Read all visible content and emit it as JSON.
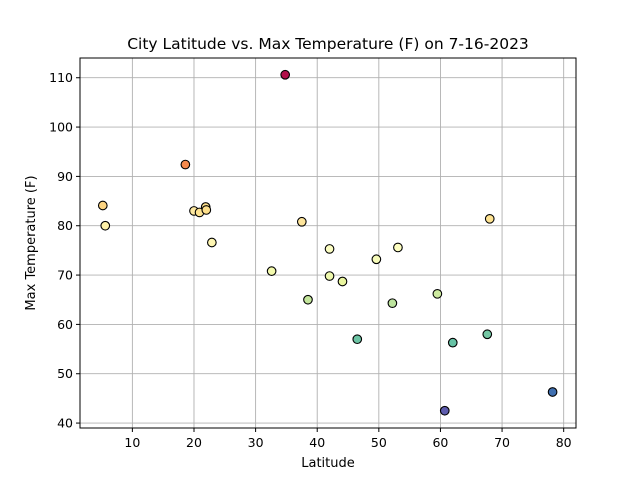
{
  "chart_data": {
    "type": "scatter",
    "title": "City Latitude vs. Max Temperature (F) on 7-16-2023",
    "xlabel": "Latitude",
    "ylabel": "Max Temperature (F)",
    "xlim": [
      1.5,
      82
    ],
    "ylim": [
      39,
      114
    ],
    "xticks": [
      10,
      20,
      30,
      40,
      50,
      60,
      70,
      80
    ],
    "yticks": [
      40,
      50,
      60,
      70,
      80,
      90,
      100,
      110
    ],
    "grid": true,
    "legend": "none",
    "colormap": "Spectral_r",
    "points": [
      {
        "x": 5.2,
        "y": 84.1,
        "color": "#fdd582"
      },
      {
        "x": 5.6,
        "y": 80.0,
        "color": "#fef1a8"
      },
      {
        "x": 18.6,
        "y": 92.4,
        "color": "#f68a4d"
      },
      {
        "x": 20.0,
        "y": 83.0,
        "color": "#fee9a0"
      },
      {
        "x": 20.9,
        "y": 82.7,
        "color": "#fee391"
      },
      {
        "x": 21.9,
        "y": 83.8,
        "color": "#fee08b"
      },
      {
        "x": 22.0,
        "y": 83.2,
        "color": "#fee08b"
      },
      {
        "x": 22.9,
        "y": 76.6,
        "color": "#fef6b2"
      },
      {
        "x": 32.6,
        "y": 70.8,
        "color": "#f3faad"
      },
      {
        "x": 34.8,
        "y": 110.6,
        "color": "#b2104a"
      },
      {
        "x": 37.5,
        "y": 80.8,
        "color": "#fee59b"
      },
      {
        "x": 38.5,
        "y": 65.0,
        "color": "#c4e69c"
      },
      {
        "x": 42.0,
        "y": 75.3,
        "color": "#fbfdc2"
      },
      {
        "x": 42.0,
        "y": 69.8,
        "color": "#eef8ad"
      },
      {
        "x": 44.1,
        "y": 68.7,
        "color": "#e9f59e"
      },
      {
        "x": 46.5,
        "y": 57.0,
        "color": "#6cc4a4"
      },
      {
        "x": 49.6,
        "y": 73.2,
        "color": "#f6fbb9"
      },
      {
        "x": 52.2,
        "y": 64.3,
        "color": "#bde49e"
      },
      {
        "x": 53.1,
        "y": 75.6,
        "color": "#fdfec1"
      },
      {
        "x": 59.5,
        "y": 66.2,
        "color": "#cdea9f"
      },
      {
        "x": 60.7,
        "y": 42.5,
        "color": "#5d5bad"
      },
      {
        "x": 62.0,
        "y": 56.3,
        "color": "#66c2a5"
      },
      {
        "x": 67.6,
        "y": 58.0,
        "color": "#74c7a4"
      },
      {
        "x": 68.0,
        "y": 81.4,
        "color": "#fee391"
      },
      {
        "x": 78.2,
        "y": 46.3,
        "color": "#3f6fb0"
      }
    ]
  }
}
